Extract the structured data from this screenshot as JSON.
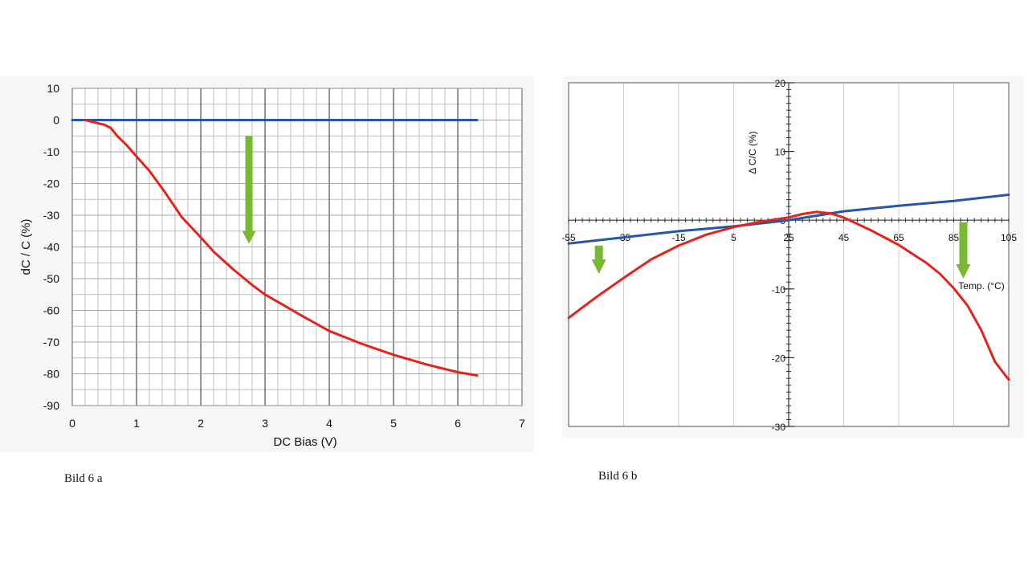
{
  "captions": {
    "a": "Bild 6 a",
    "b": "Bild 6 b"
  },
  "chart_data": [
    {
      "id": "bild-6a",
      "type": "line",
      "xlabel": "DC Bias (V)",
      "ylabel": "dC / C (%)",
      "xlim": [
        0,
        7
      ],
      "ylim": [
        -90,
        10
      ],
      "xticks": [
        0,
        1,
        2,
        3,
        4,
        5,
        6,
        7
      ],
      "yticks": [
        10,
        0,
        -10,
        -20,
        -30,
        -40,
        -50,
        -60,
        -70,
        -80,
        -90
      ],
      "grid": true,
      "series": [
        {
          "color": "#2457a8",
          "x": [
            0.0,
            1.0,
            2.0,
            3.0,
            4.0,
            5.0,
            6.3
          ],
          "y": [
            0,
            0,
            0,
            0,
            0,
            0,
            0
          ]
        },
        {
          "color": "#e3231c",
          "x": [
            0.2,
            0.4,
            0.5,
            0.6,
            0.7,
            0.85,
            1.0,
            1.2,
            1.45,
            1.7,
            2.0,
            2.2,
            2.5,
            2.8,
            3.0,
            3.3,
            3.6,
            4.0,
            4.5,
            5.0,
            5.5,
            6.0,
            6.3
          ],
          "y": [
            0,
            -1,
            -1.5,
            -2.5,
            -5,
            -8,
            -11.5,
            -16,
            -23,
            -30.5,
            -37,
            -41.5,
            -47,
            -52,
            -55,
            -58.5,
            -62,
            -66.5,
            -70.5,
            -74,
            -77,
            -79.5,
            -80.5
          ]
        }
      ],
      "annotations": [
        {
          "type": "arrow",
          "color": "#78b833",
          "direction": "down",
          "x": 2.75,
          "y_from": -5,
          "y_to": -39
        }
      ]
    },
    {
      "id": "bild-6b",
      "type": "line",
      "xlabel": "Temp. (°C)",
      "ylabel": "Δ C/C (%)",
      "xlim": [
        -55,
        105
      ],
      "ylim": [
        -30,
        20
      ],
      "xticks": [
        -55,
        -35,
        -15,
        5,
        25,
        45,
        65,
        85,
        105
      ],
      "yticks": [
        20,
        10,
        0,
        -10,
        -20,
        -30
      ],
      "grid": true,
      "series": [
        {
          "color": "#2457a8",
          "x": [
            -55,
            -35,
            -15,
            5,
            25,
            45,
            65,
            85,
            105
          ],
          "y": [
            -3.4,
            -2.5,
            -1.6,
            -0.9,
            0,
            1.3,
            2.1,
            2.8,
            3.7
          ]
        },
        {
          "color": "#e3231c",
          "x": [
            -55,
            -45,
            -35,
            -25,
            -15,
            -5,
            5,
            15,
            25,
            30,
            35,
            40,
            45,
            55,
            65,
            75,
            80,
            85,
            90,
            95,
            100,
            105
          ],
          "y": [
            -14.2,
            -11.2,
            -8.4,
            -5.7,
            -3.7,
            -2.1,
            -1.0,
            -0.2,
            0.4,
            0.9,
            1.2,
            1.0,
            0.4,
            -1.5,
            -3.6,
            -6.2,
            -7.8,
            -9.9,
            -12.4,
            -16,
            -20.6,
            -23.2
          ]
        }
      ],
      "annotations": [
        {
          "type": "arrow",
          "color": "#78b833",
          "direction": "down",
          "x": -44,
          "y_from": -3.7,
          "y_to": -7.8
        },
        {
          "type": "arrow",
          "color": "#78b833",
          "direction": "down",
          "x": 88.5,
          "y_from": -0.3,
          "y_to": -8.5
        }
      ]
    }
  ]
}
